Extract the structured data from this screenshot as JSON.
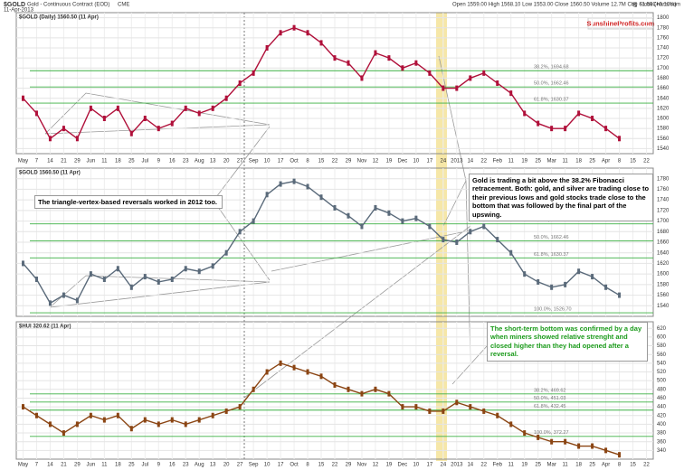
{
  "header": {
    "symbol": "$GOLD",
    "name": "Gold - Continuous Contract (EOD)",
    "exchange": "CME",
    "date": "11-Apr-2013",
    "quote": "Open 1559.00  High 1568.10  Low 1553.00  Close 1560.50  Volume 12.7M  Chg +1.50 (+0.10%)",
    "source": "@ StockCharts.com",
    "logo": "SunshineProfits.com"
  },
  "chart_data": [
    {
      "type": "line",
      "title": "$GOLD (Daily) 1560.50 (11 Apr)",
      "color": "#b0103a",
      "categories": [
        "May",
        "7",
        "14",
        "21",
        "29",
        "Jun",
        "11",
        "18",
        "25",
        "Jul",
        "9",
        "16",
        "23",
        "Aug",
        "13",
        "20",
        "27",
        "Sep",
        "10",
        "17",
        "Oct",
        "8",
        "15",
        "22",
        "29",
        "Nov",
        "12",
        "19",
        "Dec",
        "10",
        "17",
        "24",
        "2013",
        "14",
        "22",
        "Feb",
        "11",
        "19",
        "25",
        "Mar",
        "11",
        "18",
        "25",
        "Apr",
        "8",
        "15",
        "22"
      ],
      "values": [
        1640,
        1610,
        1560,
        1580,
        1560,
        1620,
        1600,
        1620,
        1570,
        1600,
        1580,
        1590,
        1620,
        1610,
        1620,
        1640,
        1670,
        1690,
        1740,
        1770,
        1780,
        1770,
        1750,
        1720,
        1710,
        1680,
        1730,
        1720,
        1700,
        1710,
        1690,
        1660,
        1660,
        1680,
        1690,
        1670,
        1650,
        1610,
        1590,
        1580,
        1580,
        1610,
        1600,
        1580,
        1560,
        null,
        null
      ],
      "ylim": [
        1530,
        1810
      ],
      "yticks": [
        1540,
        1560,
        1580,
        1600,
        1620,
        1640,
        1660,
        1680,
        1700,
        1720,
        1740,
        1760,
        1780,
        1800
      ],
      "fib": [
        {
          "value": 1694.68,
          "label": "38.2%, 1694.68"
        },
        {
          "value": 1662.46,
          "label": "50.0%, 1662.46"
        },
        {
          "value": 1630.37,
          "label": "61.8%, 1630.37"
        }
      ]
    },
    {
      "type": "line",
      "title": "$GOLD 1560.50 (11 Apr)",
      "color": "#5a6a7a",
      "values": [
        1620,
        1590,
        1545,
        1560,
        1550,
        1600,
        1590,
        1610,
        1575,
        1595,
        1585,
        1590,
        1610,
        1605,
        1615,
        1640,
        1680,
        1700,
        1750,
        1770,
        1775,
        1765,
        1745,
        1725,
        1710,
        1690,
        1725,
        1715,
        1700,
        1705,
        1690,
        1665,
        1660,
        1680,
        1690,
        1665,
        1640,
        1600,
        1585,
        1575,
        1580,
        1605,
        1595,
        1575,
        1560,
        null,
        null
      ],
      "ylim": [
        1520,
        1800
      ],
      "yticks": [
        1540,
        1560,
        1580,
        1600,
        1620,
        1640,
        1660,
        1680,
        1700,
        1720,
        1740,
        1760,
        1780
      ],
      "fib": [
        {
          "value": 1694.68,
          "label": "38.2%, 1694.68"
        },
        {
          "value": 1662.46,
          "label": "50.0%, 1662.46"
        },
        {
          "value": 1630.37,
          "label": "61.8%, 1630.37"
        },
        {
          "value": 1526.7,
          "label": "100.0%, 1526.70"
        }
      ]
    },
    {
      "type": "line",
      "title": "$HUI 320.62 (11 Apr)",
      "color": "#8b4513",
      "values": [
        440,
        420,
        400,
        380,
        400,
        420,
        410,
        420,
        390,
        410,
        400,
        410,
        400,
        410,
        420,
        430,
        440,
        480,
        520,
        540,
        530,
        520,
        510,
        490,
        480,
        470,
        480,
        470,
        440,
        440,
        430,
        430,
        450,
        440,
        430,
        420,
        400,
        380,
        370,
        360,
        360,
        350,
        350,
        340,
        330,
        null,
        null
      ],
      "ylim": [
        320,
        635
      ],
      "yticks": [
        340,
        360,
        380,
        400,
        420,
        440,
        460,
        480,
        500,
        520,
        540,
        560,
        580,
        600,
        620
      ],
      "fib": [
        {
          "value": 469.62,
          "label": "38.2%, 469.62"
        },
        {
          "value": 451.03,
          "label": "50.0%, 451.03"
        },
        {
          "value": 432.45,
          "label": "61.8%, 432.45"
        },
        {
          "value": 372.27,
          "label": "100.0%, 372.27"
        }
      ]
    }
  ],
  "notes": [
    "Gold is trading a bit above the 38.2% Fibonacci retracement. Both: gold, and silver are trading close to their previous lows and gold stocks trade close to the bottom that was followed by the final part of the upswing.",
    "The triangle-vertex-based reversals worked in 2012 too.",
    "The short-term bottom was confirmed by a day when miners showed relative strenght and closed higher than they had opened after a reversal."
  ]
}
